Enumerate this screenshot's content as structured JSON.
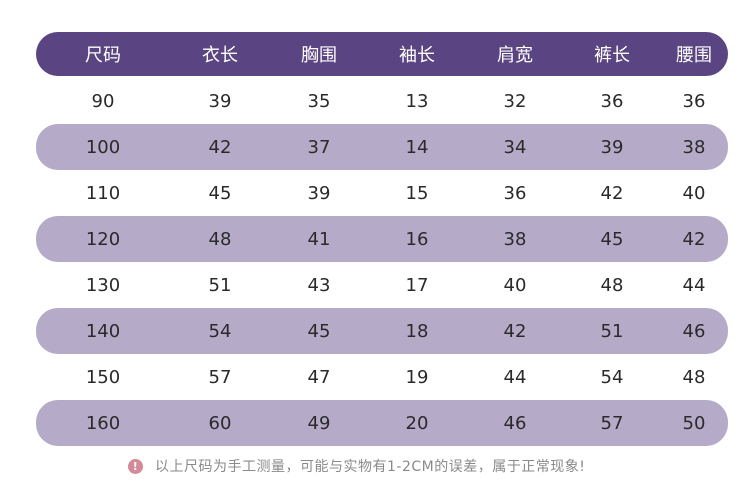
{
  "headers": [
    "尺码",
    "衣长",
    "胸围",
    "袖长",
    "肩宽",
    "裤长",
    "腰围"
  ],
  "rows": [
    [
      "90",
      "39",
      "35",
      "13",
      "32",
      "36",
      "36"
    ],
    [
      "100",
      "42",
      "37",
      "14",
      "34",
      "39",
      "38"
    ],
    [
      "110",
      "45",
      "39",
      "15",
      "36",
      "42",
      "40"
    ],
    [
      "120",
      "48",
      "41",
      "16",
      "38",
      "45",
      "42"
    ],
    [
      "130",
      "51",
      "43",
      "17",
      "40",
      "48",
      "44"
    ],
    [
      "140",
      "54",
      "45",
      "18",
      "42",
      "51",
      "46"
    ],
    [
      "150",
      "57",
      "47",
      "19",
      "44",
      "54",
      "48"
    ],
    [
      "160",
      "60",
      "49",
      "20",
      "46",
      "57",
      "50"
    ]
  ],
  "footnote": {
    "icon": "exclamation-icon",
    "icon_glyph": "!",
    "text": "以上尺码为手工测量，可能与实物有1-2CM的误差，属于正常现象!"
  },
  "colors": {
    "header_bg": "#5a4482",
    "stripe_bg": "#b6aac9",
    "icon_bg": "#d28b97"
  }
}
